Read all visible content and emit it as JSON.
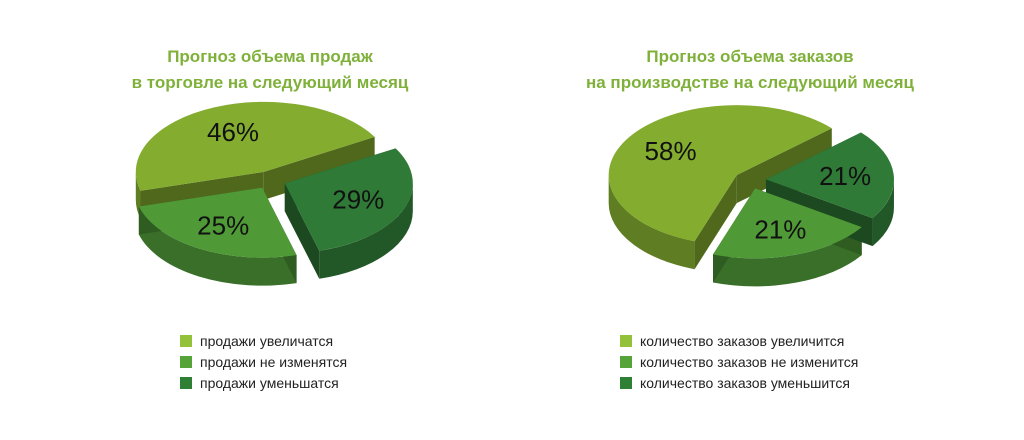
{
  "chart_data": [
    {
      "type": "pie",
      "title": [
        "Прогноз объема продаж",
        "в торговле на следующий месяц"
      ],
      "categories": [
        "продажи увеличатся",
        "продажи не изменятся",
        "продажи уменьшатся"
      ],
      "values": [
        46,
        25,
        29
      ],
      "value_labels": [
        "46%",
        "25%",
        "29%"
      ],
      "colors": [
        "#84ad2f",
        "#4f9a37",
        "#2f7a36"
      ],
      "legend_colors": [
        "#93c13a",
        "#56a33a",
        "#2f7f35"
      ],
      "legend_position": "bottom",
      "style": "3d-exploded"
    },
    {
      "type": "pie",
      "title": [
        "Прогноз объема заказов",
        "на производстве на следующий месяц"
      ],
      "categories": [
        "количество заказов увеличится",
        "количество заказов не изменится",
        "количество заказов уменьшится"
      ],
      "values": [
        58,
        21,
        21
      ],
      "value_labels": [
        "58%",
        "21%",
        "21%"
      ],
      "colors": [
        "#84ad2f",
        "#4f9a37",
        "#2f7a36"
      ],
      "legend_colors": [
        "#93c13a",
        "#56a33a",
        "#2f7f35"
      ],
      "legend_position": "bottom",
      "style": "3d-exploded"
    }
  ]
}
